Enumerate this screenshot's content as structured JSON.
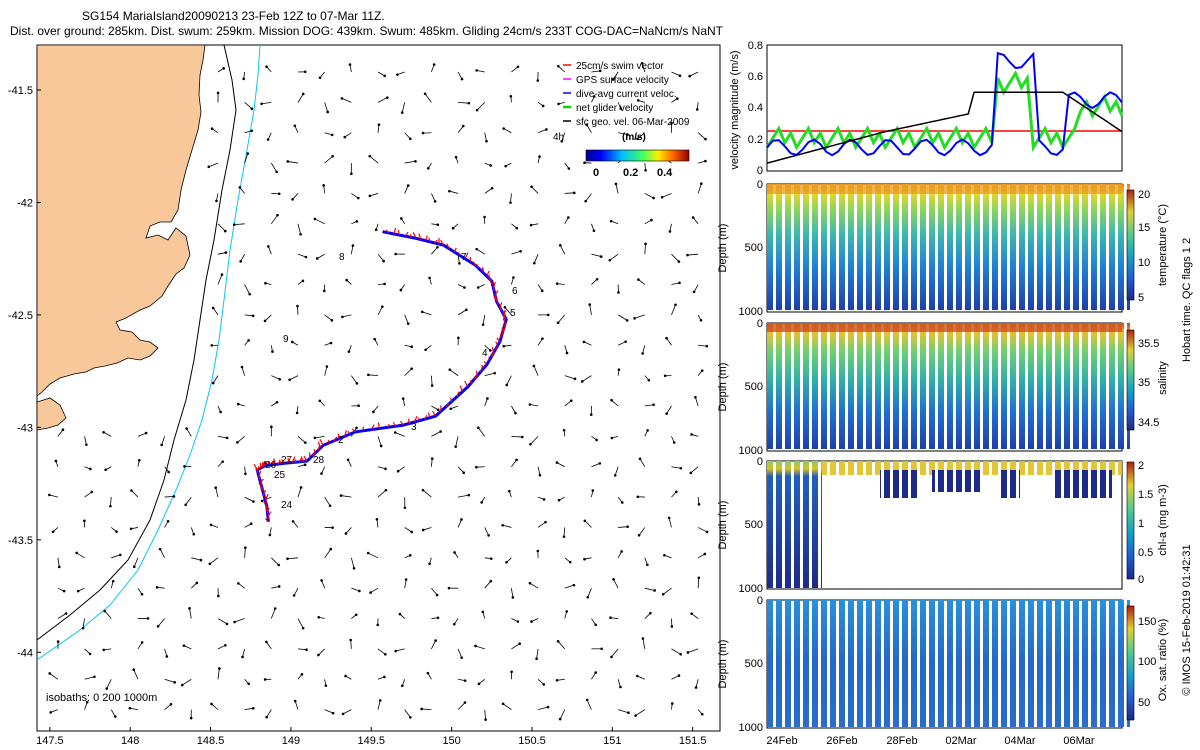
{
  "header": {
    "line1": "SG154 MariaIsland20090213 23-Feb 12Z to 07-Mar 11Z.",
    "line2": "Dist. over ground: 285km. Dist. swum: 259km. Mission DOG: 439km. Swum: 485km. Gliding 24cm/s 233T COG-DAC=NaNcm/s NaNT"
  },
  "map": {
    "xticks": [
      "147.5",
      "148",
      "148.5",
      "149",
      "149.5",
      "150",
      "150.5",
      "151",
      "151.5"
    ],
    "yticks": [
      "-41.5",
      "-42",
      "-42.5",
      "-43",
      "-43.5",
      "-44"
    ],
    "legend": [
      "25cm/s swim vector",
      "GPS surface velocity",
      "dive-avg current veloc.",
      "net glider velocity",
      "sfc geo. vel. 06-Mar-2009"
    ],
    "legend_colors": [
      "#ff0000",
      "#ff00ff",
      "#0000ff",
      "#00dd00",
      "#000000"
    ],
    "label_4h": "4h",
    "colorbar_title": "(m/s)",
    "colorbar_ticks": [
      "0",
      "0.2",
      "0.4"
    ],
    "isobaths": "isobaths: 0   200   1000m",
    "track_labels": [
      "2",
      "3",
      "4",
      "5",
      "6",
      "7",
      "8",
      "9",
      "23",
      "24",
      "25",
      "26",
      "27",
      "28"
    ]
  },
  "velocity_panel": {
    "ylabel": "velocity magnitude (m/s)",
    "yticks": [
      "0",
      "0.2",
      "0.4",
      "0.6",
      "0.8"
    ]
  },
  "panels": [
    {
      "colorbar_label": "temperature (°C)",
      "cb_ticks": [
        "5",
        "10",
        "15",
        "20"
      ]
    },
    {
      "colorbar_label": "salinity",
      "cb_ticks": [
        "34.5",
        "35",
        "35.5"
      ]
    },
    {
      "colorbar_label": "chl-a (mg m-3)",
      "cb_ticks": [
        "0",
        "0.5",
        "1",
        "1.5",
        "2"
      ]
    },
    {
      "colorbar_label": "Ox. sat. ratio (%)",
      "cb_ticks": [
        "50",
        "100",
        "150"
      ]
    }
  ],
  "depth_label": "Depth (m)",
  "depth_ticks": [
    "0",
    "500",
    "1000"
  ],
  "time_ticks": [
    "24Feb",
    "26Feb",
    "28Feb",
    "02Mar",
    "04Mar",
    "06Mar"
  ],
  "qc_text": "Hobart time. QC flags 1  2",
  "credit_text": "© IMOS 15-Feb-2019 01:42:31",
  "chart_data": {
    "type": "scatter",
    "title": "SG154 MariaIsland20090213 23-Feb 12Z to 07-Mar 11Z.",
    "xlabel": "",
    "ylabel": "",
    "xlim": [
      147.42,
      151.67
    ],
    "ylim": [
      -44.35,
      -41.3
    ],
    "series": [
      {
        "name": "glider track",
        "x": [
          148.86,
          148.85,
          148.82,
          148.79,
          148.84,
          148.96,
          149.1,
          149.2,
          149.4,
          149.7,
          149.9,
          150.1,
          150.22,
          150.3,
          150.34,
          150.28,
          150.25,
          150.15,
          149.95,
          149.78,
          149.57
        ],
        "y": [
          -43.42,
          -43.35,
          -43.27,
          -43.19,
          -43.17,
          -43.16,
          -43.15,
          -43.08,
          -43.02,
          -42.99,
          -42.95,
          -42.82,
          -42.72,
          -42.62,
          -42.52,
          -42.44,
          -42.35,
          -42.28,
          -42.19,
          -42.16,
          -42.13
        ]
      }
    ]
  }
}
